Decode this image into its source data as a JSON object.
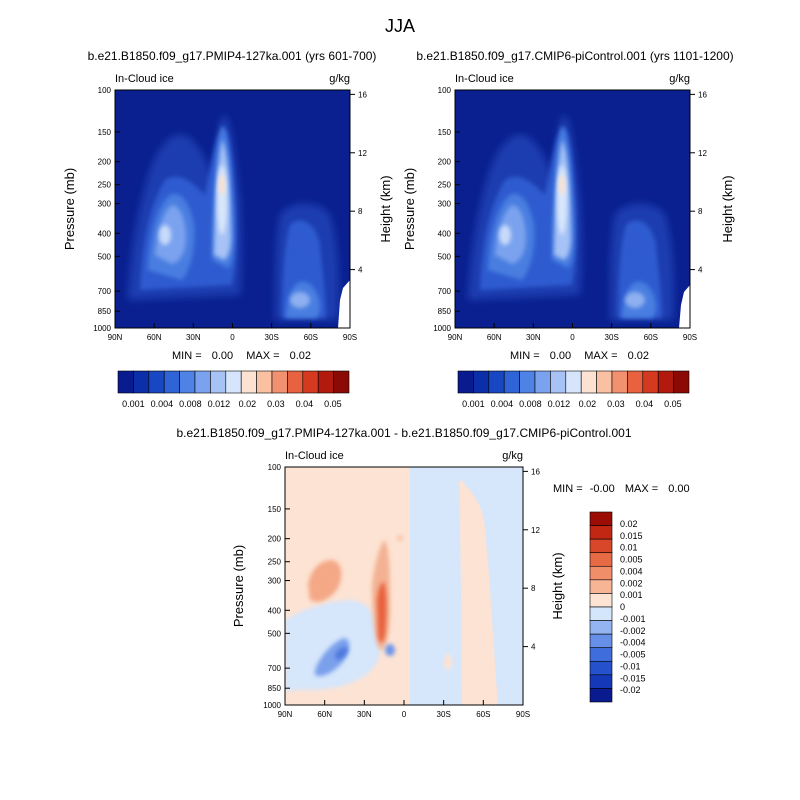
{
  "season_title": "JJA",
  "stats_prefix": {
    "min": "MIN =",
    "max": "MAX ="
  },
  "colors": {
    "abs_scale": [
      "#0a1a8f",
      "#0a2fa8",
      "#1747c2",
      "#2e64d6",
      "#4e82e4",
      "#7aa2ee",
      "#a7c2f5",
      "#d6e5fb",
      "#fde2d2",
      "#f9c0a2",
      "#f2916f",
      "#e8623f",
      "#d43a1f",
      "#b31a0e",
      "#8b0a05"
    ],
    "diff_scale": [
      "#0a1a8f",
      "#1538b8",
      "#2552cc",
      "#3f6ddc",
      "#6690e8",
      "#93b3f1",
      "#d4e6fb",
      "#fde3d3",
      "#f7b595",
      "#f08e6a",
      "#e66a44",
      "#d8472a",
      "#c12713",
      "#9c0e05"
    ]
  },
  "chart_data": [
    {
      "type": "heatmap",
      "title": "b.e21.B1850.f09_g17.PMIP4-127ka.001 (yrs 601-700)",
      "variable_label": "In-Cloud ice",
      "units_label": "g/kg",
      "ylabel": "Pressure (mb)",
      "ylabel_right": "Height (km)",
      "x_ticks": [
        "90N",
        "60N",
        "30N",
        "0",
        "30S",
        "60S",
        "90S"
      ],
      "y_ticks": [
        100,
        150,
        200,
        250,
        300,
        400,
        500,
        700,
        850,
        1000
      ],
      "right_ticks": [
        16,
        12,
        8,
        4
      ],
      "ylim": [
        100,
        1000
      ],
      "stats": {
        "min": "0.00",
        "max": "0.02"
      },
      "colorbar_labels": [
        "0.001",
        "0.004",
        "0.008",
        "0.012",
        "0.02",
        "0.03",
        "0.04",
        "0.05"
      ],
      "features": [
        {
          "lat": 10,
          "pressure": 250,
          "value": 0.02
        },
        {
          "lat": 40,
          "pressure": 350,
          "value": 0.012
        },
        {
          "lat": -55,
          "pressure": 750,
          "value": 0.012
        }
      ]
    },
    {
      "type": "heatmap",
      "title": "b.e21.B1850.f09_g17.CMIP6-piControl.001 (yrs 1101-1200)",
      "variable_label": "In-Cloud ice",
      "units_label": "g/kg",
      "ylabel": "Pressure (mb)",
      "ylabel_right": "Height (km)",
      "x_ticks": [
        "90N",
        "60N",
        "30N",
        "0",
        "30S",
        "60S",
        "90S"
      ],
      "y_ticks": [
        100,
        150,
        200,
        250,
        300,
        400,
        500,
        700,
        850,
        1000
      ],
      "right_ticks": [
        16,
        12,
        8,
        4
      ],
      "ylim": [
        100,
        1000
      ],
      "stats": {
        "min": "0.00",
        "max": "0.02"
      },
      "colorbar_labels": [
        "0.001",
        "0.004",
        "0.008",
        "0.012",
        "0.02",
        "0.03",
        "0.04",
        "0.05"
      ],
      "features": [
        {
          "lat": 10,
          "pressure": 250,
          "value": 0.02
        },
        {
          "lat": 40,
          "pressure": 350,
          "value": 0.012
        },
        {
          "lat": -55,
          "pressure": 750,
          "value": 0.012
        }
      ]
    },
    {
      "type": "heatmap",
      "title": "b.e21.B1850.f09_g17.PMIP4-127ka.001 - b.e21.B1850.f09_g17.CMIP6-piControl.001",
      "variable_label": "In-Cloud ice",
      "units_label": "g/kg",
      "ylabel": "Pressure (mb)",
      "ylabel_right": "Height (km)",
      "x_ticks": [
        "90N",
        "60N",
        "30N",
        "0",
        "30S",
        "60S",
        "90S"
      ],
      "y_ticks": [
        100,
        150,
        200,
        250,
        300,
        400,
        500,
        700,
        850,
        1000
      ],
      "right_ticks": [
        16,
        12,
        8,
        4
      ],
      "ylim": [
        100,
        1000
      ],
      "stats": {
        "min": "-0.00",
        "max": "0.00"
      },
      "colorbar_labels": [
        "0.02",
        "0.015",
        "0.01",
        "0.005",
        "0.004",
        "0.002",
        "0.001",
        "0",
        "-0.001",
        "-0.002",
        "-0.004",
        "-0.005",
        "-0.01",
        "-0.015",
        "-0.02"
      ],
      "features": [
        {
          "lat": 15,
          "pressure": 400,
          "value": 0.004
        },
        {
          "lat": 55,
          "pressure": 280,
          "value": 0.002
        },
        {
          "lat": 50,
          "pressure": 650,
          "value": -0.002
        }
      ]
    }
  ]
}
